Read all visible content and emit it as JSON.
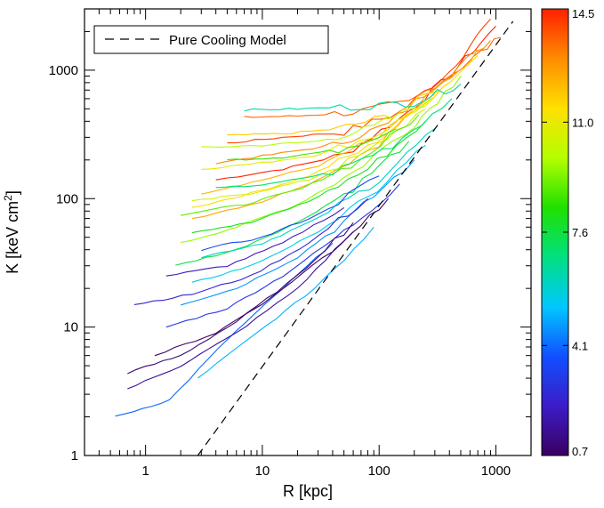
{
  "chart_data": {
    "type": "line",
    "xlabel": "R [kpc]",
    "ylabel": "K [keV cm",
    "ylabel_sup": "2",
    "ylabel_end": "]",
    "x_scale": "log",
    "y_scale": "log",
    "xlim": [
      0.3,
      2000
    ],
    "ylim": [
      1,
      3000
    ],
    "x_ticks": [
      {
        "value": 1,
        "label": "1"
      },
      {
        "value": 10,
        "label": "10"
      },
      {
        "value": 100,
        "label": "100"
      },
      {
        "value": 1000,
        "label": "1000"
      }
    ],
    "y_ticks": [
      {
        "value": 1,
        "label": "1"
      },
      {
        "value": 10,
        "label": "10"
      },
      {
        "value": 100,
        "label": "100"
      },
      {
        "value": 1000,
        "label": "1000"
      }
    ],
    "grid": false,
    "legend": {
      "position": "top-left",
      "entries": [
        {
          "label": "Pure Cooling Model",
          "style": "dashed",
          "color": "#000000"
        }
      ]
    },
    "reference_line": {
      "name": "Pure Cooling Model",
      "style": "dashed",
      "x": [
        2.8,
        1400
      ],
      "y": [
        1.0,
        2400
      ]
    },
    "colorbar": {
      "range": [
        0.7,
        14.5
      ],
      "tick_labels": [
        {
          "value": 0.7,
          "label": "0.7"
        },
        {
          "value": 4.1,
          "label": "4.1"
        },
        {
          "value": 7.6,
          "label": "7.6"
        },
        {
          "value": 11.0,
          "label": "11.0"
        },
        {
          "value": 14.5,
          "label": "14.5"
        }
      ],
      "colormap": [
        "#3a0060",
        "#3c1cc8",
        "#1050ff",
        "#00c8ff",
        "#00e080",
        "#20e000",
        "#b4ff00",
        "#ffe000",
        "#ff8c00",
        "#ff2000"
      ]
    },
    "profiles": [
      {
        "c": 14.5,
        "x": [
          4,
          15,
          50,
          150,
          400,
          1000
        ],
        "y": [
          140,
          170,
          220,
          420,
          900,
          2200
        ]
      },
      {
        "c": 14.0,
        "x": [
          5,
          15,
          50,
          150,
          400,
          900
        ],
        "y": [
          270,
          300,
          330,
          470,
          980,
          2500
        ]
      },
      {
        "c": 13.5,
        "x": [
          7,
          20,
          60,
          180,
          500,
          1100
        ],
        "y": [
          430,
          440,
          470,
          560,
          1050,
          1800
        ]
      },
      {
        "c": 13.0,
        "x": [
          4,
          12,
          40,
          120,
          350,
          900
        ],
        "y": [
          190,
          220,
          260,
          380,
          850,
          1700
        ]
      },
      {
        "c": 12.5,
        "x": [
          2.5,
          10,
          30,
          100,
          300,
          800
        ],
        "y": [
          70,
          95,
          140,
          270,
          700,
          1500
        ]
      },
      {
        "c": 12.2,
        "x": [
          3,
          10,
          30,
          100,
          300
        ],
        "y": [
          110,
          140,
          180,
          300,
          650
        ]
      },
      {
        "c": 11.8,
        "x": [
          5,
          15,
          45,
          130,
          380
        ],
        "y": [
          310,
          320,
          350,
          450,
          780
        ]
      },
      {
        "c": 11.5,
        "x": [
          2.5,
          8,
          25,
          80,
          250,
          700
        ],
        "y": [
          85,
          110,
          150,
          250,
          560,
          1300
        ]
      },
      {
        "c": 11.0,
        "x": [
          3,
          10,
          30,
          100,
          300
        ],
        "y": [
          170,
          190,
          220,
          320,
          620
        ]
      },
      {
        "c": 10.5,
        "x": [
          2.5,
          8,
          25,
          80,
          250
        ],
        "y": [
          95,
          110,
          140,
          230,
          500
        ]
      },
      {
        "c": 10.0,
        "x": [
          3,
          10,
          30,
          90,
          280
        ],
        "y": [
          250,
          260,
          280,
          360,
          600
        ]
      },
      {
        "c": 9.6,
        "x": [
          2,
          6,
          20,
          60,
          200,
          500
        ],
        "y": [
          45,
          60,
          90,
          160,
          380,
          900
        ]
      },
      {
        "c": 9.0,
        "x": [
          2,
          7,
          22,
          70,
          220
        ],
        "y": [
          75,
          90,
          120,
          200,
          450
        ]
      },
      {
        "c": 8.6,
        "x": [
          5,
          15,
          45,
          140
        ],
        "y": [
          200,
          210,
          240,
          350
        ]
      },
      {
        "c": 8.0,
        "x": [
          2.5,
          8,
          25,
          80,
          250
        ],
        "y": [
          55,
          65,
          95,
          170,
          400
        ]
      },
      {
        "c": 7.6,
        "x": [
          1.8,
          6,
          20,
          60,
          180
        ],
        "y": [
          30,
          40,
          65,
          120,
          280
        ]
      },
      {
        "c": 7.0,
        "x": [
          4,
          12,
          40,
          130,
          420
        ],
        "y": [
          120,
          130,
          160,
          260,
          600
        ]
      },
      {
        "c": 6.4,
        "x": [
          7,
          20,
          70,
          200,
          500
        ],
        "y": [
          490,
          500,
          520,
          560,
          780
        ]
      },
      {
        "c": 6.0,
        "x": [
          3,
          10,
          30,
          100,
          300
        ],
        "y": [
          35,
          45,
          70,
          140,
          350
        ]
      },
      {
        "c": 5.5,
        "x": [
          2.5,
          8,
          25,
          80,
          250
        ],
        "y": [
          22,
          30,
          50,
          100,
          260
        ]
      },
      {
        "c": 5.0,
        "x": [
          2.8,
          9,
          28,
          90
        ],
        "y": [
          4,
          9,
          20,
          60
        ]
      },
      {
        "c": 4.6,
        "x": [
          2,
          6,
          20,
          60,
          200
        ],
        "y": [
          15,
          20,
          35,
          75,
          200
        ]
      },
      {
        "c": 4.1,
        "x": [
          0.55,
          1.6,
          5,
          15,
          40
        ],
        "y": [
          2.0,
          2.7,
          8,
          20,
          45
        ]
      },
      {
        "c": 3.6,
        "x": [
          3,
          10,
          30,
          100
        ],
        "y": [
          40,
          50,
          75,
          150
        ]
      },
      {
        "c": 3.0,
        "x": [
          1.5,
          5,
          15,
          50,
          150
        ],
        "y": [
          10,
          14,
          25,
          55,
          130
        ]
      },
      {
        "c": 2.5,
        "x": [
          0.8,
          2.5,
          8,
          25,
          80
        ],
        "y": [
          15,
          18,
          25,
          45,
          100
        ]
      },
      {
        "c": 2.0,
        "x": [
          1.5,
          5,
          15,
          50
        ],
        "y": [
          25,
          30,
          45,
          85
        ]
      },
      {
        "c": 1.5,
        "x": [
          0.7,
          2,
          6,
          20,
          60
        ],
        "y": [
          3.3,
          5,
          9,
          20,
          55
        ]
      },
      {
        "c": 1.0,
        "x": [
          0.7,
          2,
          6,
          20,
          60
        ],
        "y": [
          4.4,
          6,
          11,
          25,
          65
        ]
      },
      {
        "c": 0.8,
        "x": [
          1.2,
          4,
          12,
          40,
          120
        ],
        "y": [
          6,
          9,
          17,
          40,
          100
        ]
      }
    ]
  }
}
